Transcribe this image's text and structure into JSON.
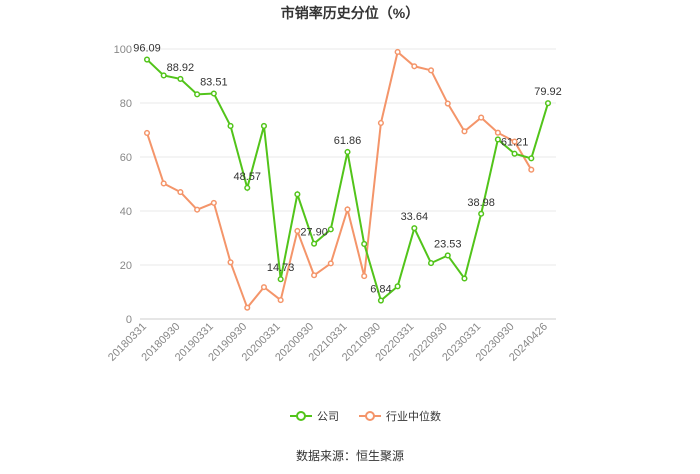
{
  "chart_data": {
    "type": "line",
    "title": "市销率历史分位（%）",
    "source": "数据来源：恒生聚源",
    "ylim": [
      0,
      100
    ],
    "yticks": [
      0,
      20,
      40,
      60,
      80,
      100
    ],
    "grid": true,
    "legend_position": "bottom",
    "x": [
      "20180331",
      "20180630",
      "20180930",
      "20181231",
      "20190331",
      "20190630",
      "20190930",
      "20191231",
      "20200331",
      "20200630",
      "20200930",
      "20201231",
      "20210331",
      "20210630",
      "20210930",
      "20211231",
      "20220331",
      "20220630",
      "20220930",
      "20221231",
      "20230331",
      "20230630",
      "20230930",
      "20231231",
      "20240426"
    ],
    "xtick_labels": [
      "20180331",
      "20180930",
      "20190331",
      "20190930",
      "20200331",
      "20200930",
      "20210331",
      "20210930",
      "20220331",
      "20220930",
      "20230331",
      "20230930",
      "20240426"
    ],
    "series": [
      {
        "name": "公司",
        "color": "#52c41a",
        "values": [
          96.09,
          90.2,
          88.92,
          83.2,
          83.51,
          71.5,
          48.57,
          71.5,
          14.73,
          46.2,
          27.9,
          33.2,
          61.86,
          27.8,
          6.84,
          12.1,
          33.64,
          20.7,
          23.53,
          15.0,
          38.98,
          66.5,
          61.21,
          59.5,
          79.92
        ],
        "labels": {
          "0": "96.09",
          "2": "88.92",
          "4": "83.51",
          "6": "48.57",
          "8": "14.73",
          "10": "27.90",
          "12": "61.86",
          "14": "6.84",
          "16": "33.64",
          "18": "23.53",
          "20": "38.98",
          "22": "61.21",
          "24": "79.92"
        }
      },
      {
        "name": "行业中位数",
        "color": "#f4956a",
        "values": [
          68.9,
          50.2,
          47.0,
          40.5,
          43.0,
          21.0,
          4.2,
          11.8,
          7.0,
          32.6,
          16.2,
          20.6,
          40.6,
          15.9,
          72.6,
          98.9,
          93.6,
          92.1,
          79.8,
          69.5,
          74.6,
          69.0,
          65.7,
          55.3,
          null
        ]
      }
    ]
  }
}
